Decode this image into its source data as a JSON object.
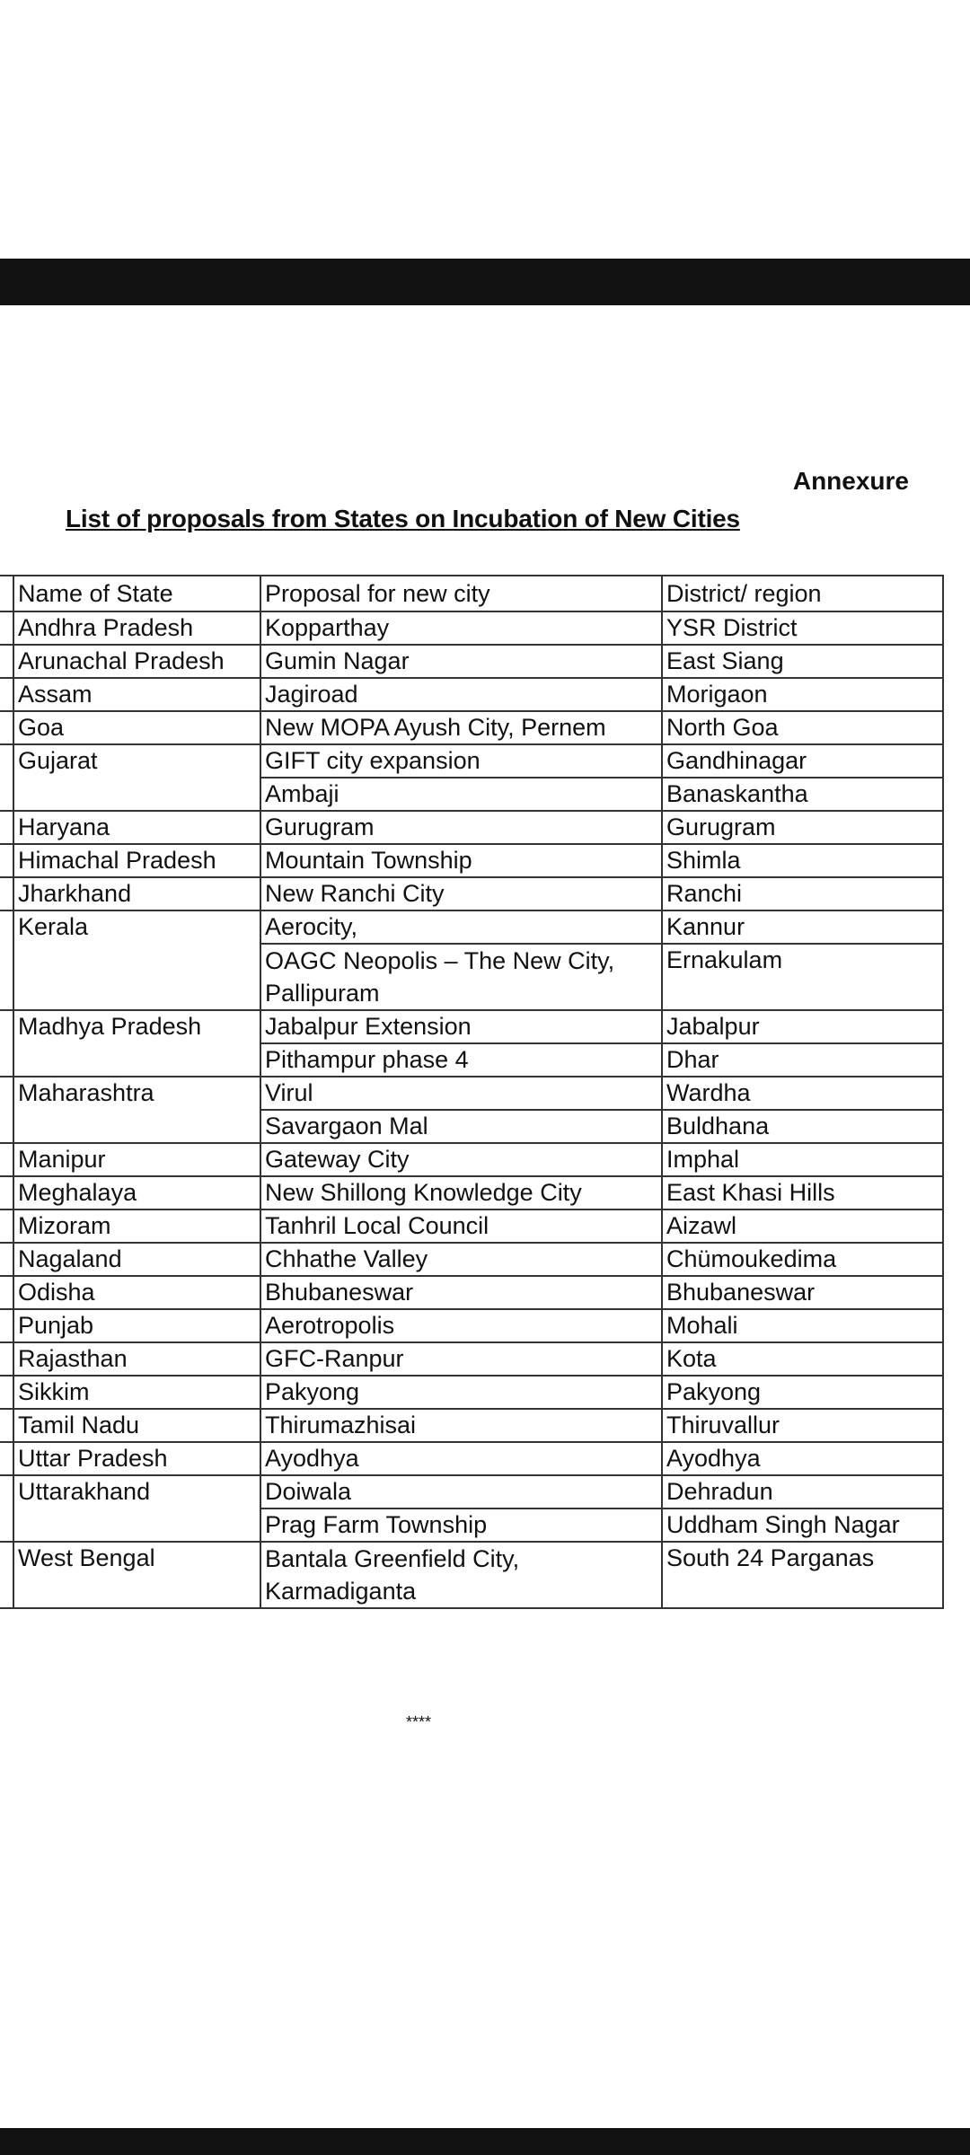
{
  "document": {
    "annexure": "Annexure",
    "title": "List of proposals from States on Incubation of New Cities",
    "footer_mark": "****"
  },
  "table": {
    "headers": [
      "Name of State",
      "Proposal for new city",
      "District/ region"
    ],
    "states": [
      {
        "state": "Andhra Pradesh",
        "proposals": [
          [
            "Kopparthay",
            "YSR District"
          ]
        ]
      },
      {
        "state": "Arunachal Pradesh",
        "proposals": [
          [
            "Gumin Nagar",
            "East Siang"
          ]
        ]
      },
      {
        "state": "Assam",
        "proposals": [
          [
            "Jagiroad",
            "Morigaon"
          ]
        ]
      },
      {
        "state": "Goa",
        "proposals": [
          [
            "New MOPA Ayush City, Pernem",
            "North Goa"
          ]
        ]
      },
      {
        "state": "Gujarat",
        "proposals": [
          [
            "GIFT city expansion",
            "Gandhinagar"
          ],
          [
            "Ambaji",
            "Banaskantha"
          ]
        ]
      },
      {
        "state": "Haryana",
        "proposals": [
          [
            "Gurugram",
            "Gurugram"
          ]
        ]
      },
      {
        "state": "Himachal Pradesh",
        "proposals": [
          [
            "Mountain Township",
            "Shimla"
          ]
        ]
      },
      {
        "state": "Jharkhand",
        "proposals": [
          [
            "New Ranchi City",
            "Ranchi"
          ]
        ]
      },
      {
        "state": "Kerala",
        "proposals": [
          [
            "Aerocity,",
            "Kannur"
          ],
          [
            "OAGC Neopolis – The New City, Pallipuram",
            "Ernakulam"
          ]
        ]
      },
      {
        "state": "Madhya Pradesh",
        "proposals": [
          [
            "Jabalpur Extension",
            "Jabalpur"
          ],
          [
            "Pithampur phase 4",
            "Dhar"
          ]
        ]
      },
      {
        "state": "Maharashtra",
        "proposals": [
          [
            "Virul",
            "Wardha"
          ],
          [
            "Savargaon Mal",
            "Buldhana"
          ]
        ]
      },
      {
        "state": "Manipur",
        "proposals": [
          [
            "Gateway City",
            "Imphal"
          ]
        ]
      },
      {
        "state": "Meghalaya",
        "proposals": [
          [
            "New Shillong Knowledge City",
            "East Khasi Hills"
          ]
        ]
      },
      {
        "state": "Mizoram",
        "proposals": [
          [
            "Tanhril Local Council",
            "Aizawl"
          ]
        ]
      },
      {
        "state": "Nagaland",
        "proposals": [
          [
            "Chhathe Valley",
            "Chümoukedima"
          ]
        ]
      },
      {
        "state": "Odisha",
        "proposals": [
          [
            "Bhubaneswar",
            "Bhubaneswar"
          ]
        ]
      },
      {
        "state": "Punjab",
        "proposals": [
          [
            "Aerotropolis",
            "Mohali"
          ]
        ]
      },
      {
        "state": "Rajasthan",
        "proposals": [
          [
            "GFC-Ranpur",
            "Kota"
          ]
        ]
      },
      {
        "state": "Sikkim",
        "proposals": [
          [
            "Pakyong",
            "Pakyong"
          ]
        ]
      },
      {
        "state": "Tamil Nadu",
        "proposals": [
          [
            "Thirumazhisai",
            "Thiruvallur"
          ]
        ]
      },
      {
        "state": "Uttar Pradesh",
        "proposals": [
          [
            "Ayodhya",
            "Ayodhya"
          ]
        ]
      },
      {
        "state": "Uttarakhand",
        "proposals": [
          [
            "Doiwala",
            "Dehradun"
          ],
          [
            "Prag Farm Township",
            "Uddham Singh Nagar"
          ]
        ]
      },
      {
        "state": "West Bengal",
        "proposals": [
          [
            "Bantala Greenfield City, Karmadiganta",
            "South 24 Parganas"
          ]
        ]
      }
    ]
  }
}
